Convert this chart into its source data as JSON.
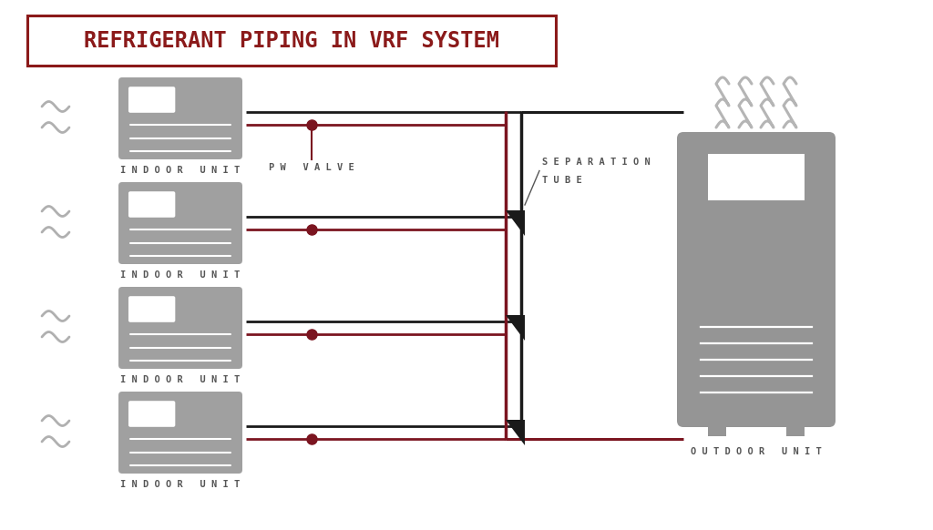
{
  "title": "REFRIGERANT PIPING IN VRF SYSTEM",
  "title_color": "#8B1A1A",
  "title_box_color": "#8B1A1A",
  "bg_color": "#FFFFFF",
  "gray_unit": "#a0a0a0",
  "dark_red": "#7B1520",
  "black": "#1a1a1a",
  "text_color": "#555555",
  "indoor_label": "I N D O O R   U N I T",
  "outdoor_label": "O U T D O O R   U N I T",
  "pw_valve_label": "P W   V A L V E",
  "separation_tube_line1": "S E P A R A T I O N",
  "separation_tube_line2": "T U B E",
  "font_size_title": 17,
  "font_size_labels": 7.5
}
